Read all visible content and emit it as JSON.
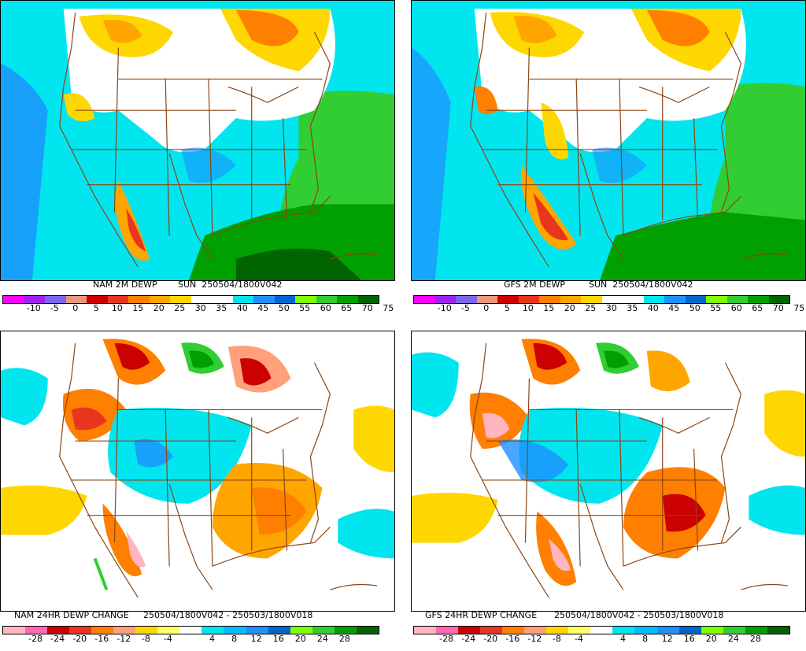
{
  "panels": [
    {
      "id": "nam-dewp",
      "title_left": "NAM 2M DEWP",
      "title_right": "SUN  250504/1800V042",
      "scale": "dewp",
      "palette": [
        "#ff00ff",
        "#a020f0",
        "#7b68ee",
        "#e9967a",
        "#cc0000",
        "#e8361e",
        "#ff7f00",
        "#ffa500",
        "#ffd700",
        "#ffffff",
        "#ffffff",
        "#00e5ee",
        "#1e90ff",
        "#0066cc",
        "#7fff00",
        "#32cd32",
        "#00a000",
        "#006400"
      ],
      "ticks": [
        "-10",
        "-5",
        "0",
        "5",
        "10",
        "15",
        "20",
        "25",
        "30",
        "35",
        "40",
        "45",
        "50",
        "55",
        "60",
        "65",
        "70",
        "75"
      ]
    },
    {
      "id": "gfs-dewp",
      "title_left": "GFS 2M DEWP",
      "title_right": "SUN  250504/1800V042",
      "scale": "dewp",
      "palette": [
        "#ff00ff",
        "#a020f0",
        "#7b68ee",
        "#e9967a",
        "#cc0000",
        "#e8361e",
        "#ff7f00",
        "#ffa500",
        "#ffd700",
        "#ffffff",
        "#ffffff",
        "#00e5ee",
        "#1e90ff",
        "#0066cc",
        "#7fff00",
        "#32cd32",
        "#00a000",
        "#006400"
      ],
      "ticks": [
        "-10",
        "-5",
        "0",
        "5",
        "10",
        "15",
        "20",
        "25",
        "30",
        "35",
        "40",
        "45",
        "50",
        "55",
        "60",
        "65",
        "70",
        "75"
      ]
    },
    {
      "id": "nam-change",
      "title_left": "NAM 24HR DEWP CHANGE",
      "title_right": "250504/1800V042 - 250503/1800V018",
      "scale": "change",
      "palette": [
        "#ffb6c1",
        "#ff69b4",
        "#cc0000",
        "#e8361e",
        "#ff7f00",
        "#ffa07a",
        "#ffd700",
        "#ffff66",
        "#ffffff",
        "#00e5ee",
        "#00bfff",
        "#1e90ff",
        "#0066cc",
        "#7fff00",
        "#32cd32",
        "#00a000",
        "#006400"
      ],
      "ticks": [
        "-28",
        "-24",
        "-20",
        "-16",
        "-12",
        "-8",
        "-4",
        "4",
        "8",
        "12",
        "16",
        "20",
        "24",
        "28"
      ]
    },
    {
      "id": "gfs-change",
      "title_left": "GFS 24HR DEWP CHANGE",
      "title_right": "250504/1800V042 - 250503/1800V018",
      "scale": "change",
      "palette": [
        "#ffb6c1",
        "#ff69b4",
        "#cc0000",
        "#e8361e",
        "#ff7f00",
        "#ffa07a",
        "#ffd700",
        "#ffff66",
        "#ffffff",
        "#00e5ee",
        "#00bfff",
        "#1e90ff",
        "#0066cc",
        "#7fff00",
        "#32cd32",
        "#00a000",
        "#006400"
      ],
      "ticks": [
        "-28",
        "-24",
        "-20",
        "-16",
        "-12",
        "-8",
        "-4",
        "4",
        "8",
        "12",
        "16",
        "20",
        "24",
        "28"
      ]
    }
  ],
  "colors": {
    "border": "#8b4513",
    "frame": "#000000"
  }
}
